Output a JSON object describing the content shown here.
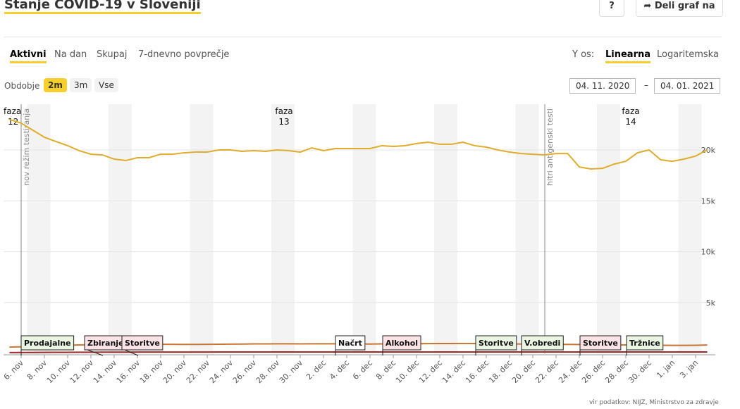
{
  "header": {
    "title": "Stanje COVID-19 v Sloveniji",
    "help": "?",
    "share": "Deli graf na"
  },
  "tabs": [
    "Aktivni",
    "Na dan",
    "Skupaj",
    "7-dnevno povprečje"
  ],
  "yaxis_label": "Y os:",
  "yaxis_options": [
    "Linearna",
    "Logaritemska"
  ],
  "period_label": "Obdobje",
  "periods": [
    "2m",
    "3m",
    "Vse"
  ],
  "date_from": "04. 11. 2020",
  "date_sep": "–",
  "date_to": "04. 01. 2021",
  "source": "vir podatkov: NIJZ, Ministrstvo za zdravje",
  "chart_data": {
    "type": "line",
    "log_scale": false,
    "grid": true,
    "categories": [
      null,
      "6. nov",
      null,
      "8. nov",
      null,
      "10. nov",
      null,
      "12. nov",
      null,
      "14. nov",
      null,
      "16. nov",
      null,
      "18. nov",
      null,
      "20. nov",
      null,
      "22. nov",
      null,
      "24. nov",
      null,
      "26. nov",
      null,
      "28. nov",
      null,
      "30. nov",
      null,
      "2. dec",
      null,
      "4. dec",
      null,
      "6. dec",
      null,
      "8. dec",
      null,
      "10. dec",
      null,
      "12. dec",
      null,
      "14. dec",
      null,
      "16. dec",
      null,
      "18. dec",
      null,
      "20. dec",
      null,
      "22. dec",
      null,
      "24. dec",
      null,
      "26. dec",
      null,
      "28. dec",
      null,
      "30. dec",
      null,
      "1. jan",
      null,
      "3. jan",
      null
    ],
    "ylim": [
      0,
      24500
    ],
    "yticks": [
      {
        "value": 5000,
        "label": "5k"
      },
      {
        "value": 10000,
        "label": "10k"
      },
      {
        "value": 15000,
        "label": "15k"
      },
      {
        "value": 20000,
        "label": "20k"
      }
    ],
    "series": [
      {
        "color": "#e0ac2b",
        "values": [
          22990,
          22640,
          21950,
          21250,
          20830,
          20420,
          19930,
          19580,
          19510,
          19100,
          18960,
          19240,
          19240,
          19580,
          19580,
          19720,
          19790,
          19790,
          20000,
          20000,
          19860,
          19930,
          19860,
          20000,
          19930,
          19790,
          20210,
          19930,
          20140,
          20140,
          20140,
          20140,
          20420,
          20350,
          20420,
          20630,
          20760,
          20560,
          20560,
          20760,
          20420,
          20280,
          20000,
          19790,
          19650,
          19580,
          19510,
          19650,
          19650,
          18330,
          18130,
          18190,
          18610,
          18890,
          19720,
          20000,
          19030,
          18890,
          19100,
          19400,
          20000
        ]
      },
      {
        "color": "#c87533",
        "values": [
          620,
          650,
          700,
          740,
          770,
          800,
          830,
          850,
          870,
          880,
          890,
          900,
          900,
          890,
          890,
          880,
          880,
          890,
          900,
          910,
          920,
          930,
          930,
          940,
          940,
          930,
          940,
          940,
          940,
          930,
          930,
          920,
          930,
          930,
          940,
          950,
          960,
          970,
          970,
          980,
          970,
          960,
          950,
          930,
          920,
          900,
          890,
          880,
          880,
          870,
          860,
          850,
          840,
          830,
          820,
          810,
          800,
          790,
          790,
          800,
          820
        ]
      },
      {
        "color": "#a02828",
        "values": [
          80,
          85,
          90,
          95,
          100,
          105,
          110,
          115,
          120,
          125,
          125,
          130,
          130,
          130,
          130,
          130,
          130,
          130,
          135,
          135,
          135,
          135,
          135,
          135,
          135,
          135,
          135,
          135,
          135,
          135,
          135,
          135,
          135,
          135,
          135,
          135,
          135,
          135,
          135,
          135,
          135,
          135,
          135,
          135,
          135,
          135,
          135,
          135,
          135,
          135,
          135,
          135,
          135,
          135,
          135,
          135,
          135,
          135,
          135,
          135,
          135
        ]
      }
    ],
    "phases": [
      [
        "faza",
        "12"
      ],
      [
        "faza",
        "13"
      ],
      [
        "faza",
        "14"
      ]
    ],
    "events": [
      "nov režim testiranja",
      "hitri antigenski testi"
    ],
    "measures": [
      {
        "text": "Prodajalne",
        "color": "#eaf6e2"
      },
      {
        "text": "Zbiranje",
        "color": "#fde3e6"
      },
      {
        "text": "Storitve",
        "color": "#fde3e6"
      },
      {
        "text": "Načrt",
        "color": "#ffffff"
      },
      {
        "text": "Alkohol",
        "color": "#fde3e6"
      },
      {
        "text": "Storitve",
        "color": "#eaf6e2"
      },
      {
        "text": "V.obredi",
        "color": "#eaf6e2"
      },
      {
        "text": "Storitve",
        "color": "#fde3e6"
      },
      {
        "text": "Tržnice",
        "color": "#eaf6e2"
      }
    ]
  }
}
